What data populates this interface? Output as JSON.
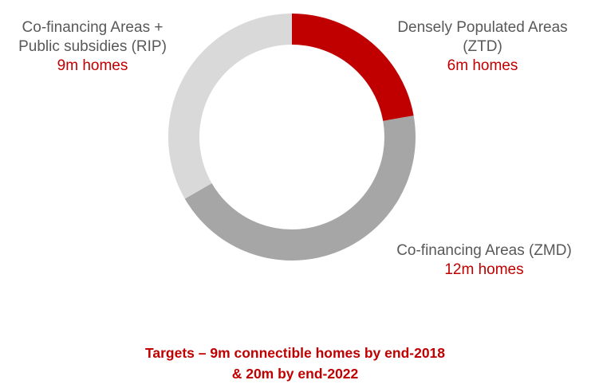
{
  "chart_data": {
    "type": "pie",
    "variant": "donut",
    "slices": [
      {
        "label_lines": [
          "Densely Populated Areas",
          "(ZTD)"
        ],
        "value": 6,
        "value_label": "6m homes",
        "color": "#c00000"
      },
      {
        "label_lines": [
          "Co-financing Areas (ZMD)"
        ],
        "value": 12,
        "value_label": "12m homes",
        "color": "#a6a6a6"
      },
      {
        "label_lines": [
          "Co-financing Areas +",
          "Public subsidies (RIP)"
        ],
        "value": 9,
        "value_label": "9m homes",
        "color": "#d9d9d9"
      }
    ]
  },
  "footer": {
    "line1": "Targets – 9m connectible homes by end-2018",
    "line2": "& 20m by end-2022"
  }
}
